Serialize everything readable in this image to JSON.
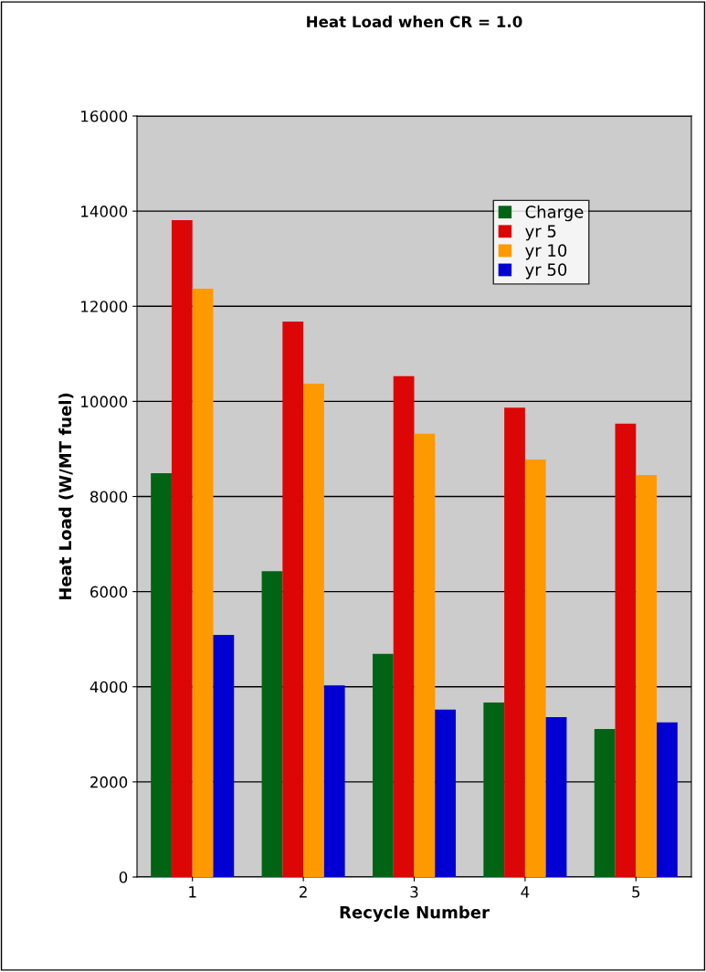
{
  "chart_data": {
    "type": "bar",
    "title": "Heat Load when CR = 1.0",
    "xlabel": "Recycle Number",
    "ylabel": "Heat Load (W/MT fuel)",
    "categories": [
      "1",
      "2",
      "3",
      "4",
      "5"
    ],
    "series": [
      {
        "name": "Charge",
        "color": "#006414",
        "values": [
          8490,
          6430,
          4690,
          3670,
          3110
        ]
      },
      {
        "name": "yr 5",
        "color": "#dc0606",
        "values": [
          13810,
          11680,
          10530,
          9870,
          9530
        ]
      },
      {
        "name": "yr 10",
        "color": "#ff9900",
        "values": [
          12370,
          10370,
          9320,
          8780,
          8450
        ]
      },
      {
        "name": "yr 50",
        "color": "#0000d2",
        "values": [
          5090,
          4030,
          3520,
          3360,
          3250
        ]
      }
    ],
    "ylim": [
      0,
      16000
    ],
    "yticks": [
      0,
      2000,
      4000,
      6000,
      8000,
      10000,
      12000,
      14000,
      16000
    ],
    "grid": "y",
    "legend": "top right"
  }
}
